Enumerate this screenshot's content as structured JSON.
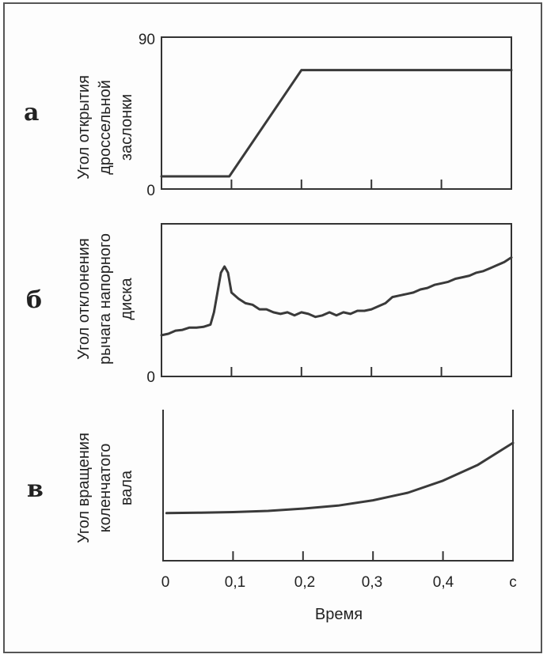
{
  "chart_data": [
    {
      "type": "line",
      "panel_label": "а",
      "ylabel_lines": [
        "Угол открытия",
        "дроссельной",
        "заслонки"
      ],
      "ytick_labels": [
        "90",
        "0"
      ],
      "yticks": [
        90,
        0
      ],
      "ylim": [
        0,
        90
      ],
      "xlim": [
        0,
        0.5
      ],
      "xticks": [
        0.1,
        0.2,
        0.3,
        0.4
      ],
      "series": [
        {
          "x": [
            0,
            0.097,
            0.2,
            0.5
          ],
          "y": [
            7.5,
            7.5,
            70.5,
            70.5
          ]
        }
      ]
    },
    {
      "type": "line",
      "panel_label": "б",
      "ylabel_lines": [
        "Угол отклонения",
        "рычага напорного",
        "диска"
      ],
      "ytick_labels": [
        "0"
      ],
      "yticks": [
        0
      ],
      "ylim": [
        0,
        100
      ],
      "xlim": [
        0,
        0.5
      ],
      "xticks": [
        0.1,
        0.2,
        0.3,
        0.4
      ],
      "series": [
        {
          "x": [
            0,
            0.01,
            0.02,
            0.03,
            0.04,
            0.05,
            0.06,
            0.07,
            0.075,
            0.08,
            0.085,
            0.09,
            0.095,
            0.1,
            0.11,
            0.12,
            0.13,
            0.14,
            0.15,
            0.16,
            0.17,
            0.18,
            0.19,
            0.2,
            0.21,
            0.22,
            0.23,
            0.24,
            0.25,
            0.26,
            0.27,
            0.28,
            0.29,
            0.3,
            0.31,
            0.32,
            0.33,
            0.34,
            0.35,
            0.36,
            0.37,
            0.38,
            0.39,
            0.4,
            0.41,
            0.42,
            0.43,
            0.44,
            0.45,
            0.46,
            0.47,
            0.48,
            0.49,
            0.5
          ],
          "y": [
            27,
            28,
            30,
            30.5,
            32,
            32,
            32.5,
            34,
            42,
            55,
            68,
            72,
            68,
            55,
            51,
            48,
            47,
            44,
            44,
            42,
            41,
            42,
            40,
            42,
            41,
            39,
            40,
            42,
            40,
            42,
            41,
            43,
            43,
            44,
            46,
            48,
            52,
            53,
            54,
            55,
            57,
            58,
            60,
            61,
            62,
            64,
            65,
            66,
            68,
            69,
            71,
            73,
            75,
            78
          ]
        }
      ]
    },
    {
      "type": "line",
      "panel_label": "в",
      "ylabel_lines": [
        "Угол вращения",
        "коленчатого",
        "вала"
      ],
      "ytick_labels": [],
      "yticks": [],
      "ylim": [
        0,
        100
      ],
      "xlim": [
        0,
        0.5
      ],
      "xticks": [
        0.1,
        0.2,
        0.3,
        0.4
      ],
      "xtick_labels": [
        "0",
        "0,1",
        "0,2",
        "0,3",
        "0,4",
        "с"
      ],
      "xlabel": "Время",
      "series": [
        {
          "x": [
            0.005,
            0.05,
            0.1,
            0.15,
            0.2,
            0.25,
            0.3,
            0.35,
            0.4,
            0.45,
            0.5
          ],
          "y": [
            31.5,
            31.8,
            32.2,
            33,
            34.5,
            36.5,
            40,
            45,
            53,
            63.5,
            78
          ]
        }
      ]
    }
  ]
}
